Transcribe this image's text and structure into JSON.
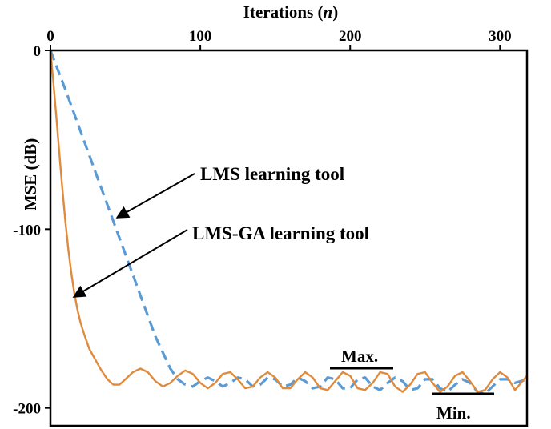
{
  "chart_data": {
    "type": "line",
    "title": "",
    "xlabel_main": "Iterations (",
    "xlabel_var": "n",
    "xlabel_close": ")",
    "ylabel": "MSE (dB)",
    "xlim": [
      0,
      318
    ],
    "ylim": [
      -210,
      0
    ],
    "x_ticks": [
      0,
      100,
      200,
      300
    ],
    "x_tick_labels": [
      "0",
      "100",
      "200",
      "300"
    ],
    "y_ticks": [
      0,
      -100,
      -200
    ],
    "y_tick_labels": [
      "0",
      "-100",
      "-200"
    ],
    "grid": false,
    "legend": "none",
    "series": [
      {
        "style": "dashed",
        "color": "#5b9bd5",
        "x": [
          0,
          10,
          20,
          30,
          40,
          50,
          60,
          70,
          80,
          85,
          90,
          95,
          100,
          105,
          110,
          115,
          120,
          125,
          130,
          135,
          140,
          145,
          150,
          155,
          160,
          165,
          170,
          175,
          180,
          185,
          190,
          195,
          200,
          205,
          210,
          215,
          220,
          225,
          230,
          235,
          240,
          245,
          250,
          255,
          260,
          265,
          270,
          275,
          280,
          285,
          290,
          295,
          300,
          305,
          310,
          318
        ],
        "y": [
          0,
          -22,
          -45,
          -68,
          -91,
          -114,
          -137,
          -160,
          -178,
          -184,
          -187,
          -188,
          -185,
          -183,
          -185,
          -188,
          -186,
          -183,
          -184,
          -188,
          -187,
          -183,
          -184,
          -188,
          -187,
          -183,
          -185,
          -189,
          -188,
          -183,
          -184,
          -189,
          -189,
          -184,
          -183,
          -188,
          -190,
          -186,
          -183,
          -185,
          -190,
          -189,
          -184,
          -184,
          -189,
          -191,
          -187,
          -184,
          -186,
          -191,
          -192,
          -188,
          -184,
          -184,
          -186,
          -184
        ]
      },
      {
        "style": "solid",
        "color": "#e08a3c",
        "x": [
          0,
          2,
          4,
          6,
          8,
          10,
          12,
          14,
          16,
          18,
          20,
          23,
          26,
          30,
          34,
          38,
          42,
          46,
          50,
          55,
          60,
          65,
          70,
          75,
          80,
          85,
          90,
          95,
          100,
          105,
          110,
          115,
          120,
          125,
          130,
          135,
          140,
          145,
          150,
          155,
          160,
          165,
          170,
          175,
          180,
          185,
          190,
          195,
          200,
          205,
          210,
          215,
          220,
          225,
          230,
          235,
          240,
          245,
          250,
          255,
          260,
          265,
          270,
          275,
          280,
          285,
          290,
          295,
          300,
          305,
          310,
          318
        ],
        "y": [
          0,
          -18,
          -38,
          -58,
          -78,
          -96,
          -112,
          -125,
          -136,
          -145,
          -152,
          -160,
          -167,
          -173,
          -179,
          -184,
          -187,
          -187,
          -184,
          -180,
          -178,
          -180,
          -185,
          -188,
          -186,
          -182,
          -179,
          -181,
          -186,
          -189,
          -186,
          -181,
          -180,
          -184,
          -189,
          -188,
          -183,
          -180,
          -183,
          -189,
          -189,
          -184,
          -180,
          -183,
          -189,
          -190,
          -185,
          -180,
          -182,
          -189,
          -190,
          -186,
          -180,
          -181,
          -188,
          -191,
          -187,
          -181,
          -180,
          -186,
          -191,
          -188,
          -182,
          -180,
          -185,
          -191,
          -190,
          -184,
          -180,
          -183,
          -190,
          -182
        ]
      }
    ],
    "annotations": {
      "lms": "LMS learning tool",
      "lmsga": "LMS-GA learning tool",
      "max": "Max.",
      "min": "Min."
    }
  }
}
